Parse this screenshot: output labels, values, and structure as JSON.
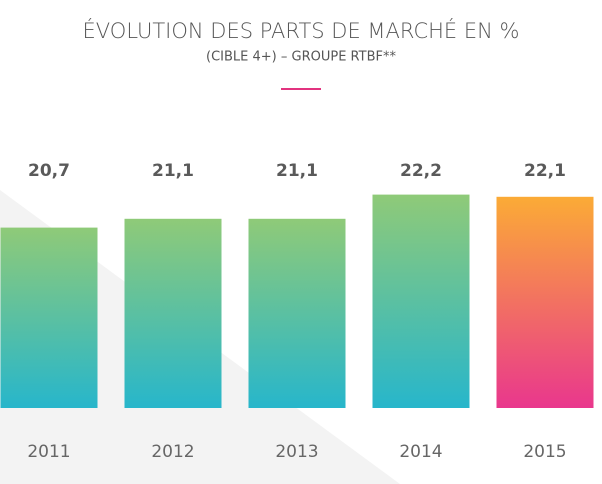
{
  "chart_data": {
    "type": "bar",
    "title": "ÉVOLUTION DES PARTS DE MARCHÉ EN %",
    "subtitle": "(CIBLE 4+) – GROUPE RTBF**",
    "categories": [
      "2011",
      "2012",
      "2013",
      "2014",
      "2015"
    ],
    "values": [
      20.7,
      21.1,
      21.1,
      22.2,
      22.1
    ],
    "value_labels": [
      "20,7",
      "21,1",
      "21,1",
      "22,2",
      "22,1"
    ],
    "colors": [
      [
        "#8fca78",
        "#27b6cb"
      ],
      [
        "#8fca78",
        "#27b6cb"
      ],
      [
        "#8fca78",
        "#27b6cb"
      ],
      [
        "#8fca78",
        "#27b6cb"
      ],
      [
        "#fbab36",
        "#e9378d"
      ]
    ],
    "ylim": [
      12.5,
      23.5
    ]
  }
}
